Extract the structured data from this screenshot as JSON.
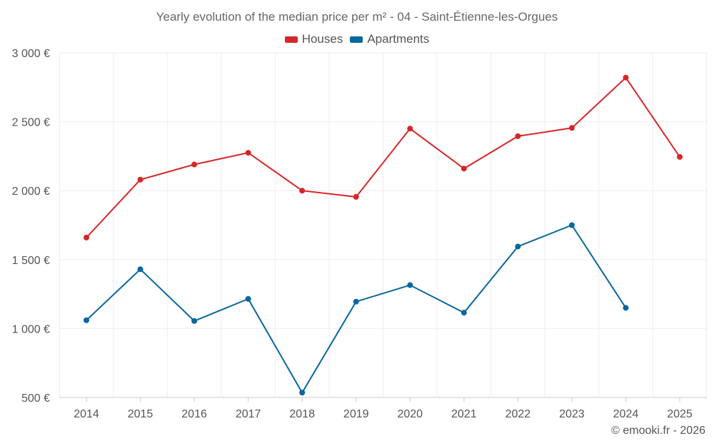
{
  "chart_data": {
    "type": "line",
    "title": "Yearly evolution of the median price per m² - 04 - Saint-Étienne-les-Orgues",
    "categories": [
      "2014",
      "2015",
      "2016",
      "2017",
      "2018",
      "2019",
      "2020",
      "2021",
      "2022",
      "2023",
      "2024",
      "2025"
    ],
    "series": [
      {
        "name": "Houses",
        "color": "#d62728",
        "values": [
          1660,
          2080,
          2190,
          2275,
          2000,
          1955,
          2450,
          2160,
          2395,
          2455,
          2820,
          2245
        ]
      },
      {
        "name": "Apartments",
        "color": "#08679c",
        "values": [
          1060,
          1430,
          1055,
          1215,
          535,
          1195,
          1315,
          1115,
          1595,
          1750,
          1150,
          null
        ]
      }
    ],
    "yticks": [
      500,
      1000,
      1500,
      2000,
      2500,
      3000
    ],
    "ytick_labels": [
      "500 €",
      "1 000 €",
      "1 500 €",
      "2 000 €",
      "2 500 €",
      "3 000 €"
    ],
    "ylim": [
      500,
      3000
    ],
    "grid": true,
    "legend_position": "top-center",
    "xlabel": "",
    "ylabel": ""
  },
  "credit": "© emooki.fr - 2026"
}
